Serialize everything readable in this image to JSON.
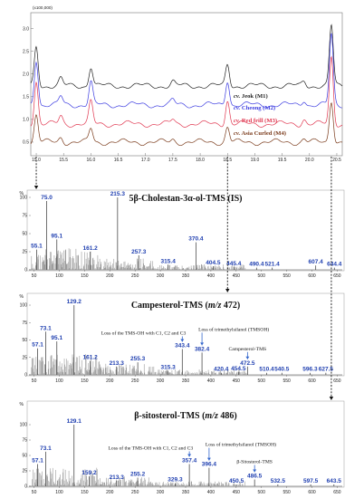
{
  "chart_data": [
    {
      "type": "line",
      "panel": "chromatogram",
      "y_scale_label": "(x100,000)",
      "y_ticks": [
        "3.0",
        "2.5",
        "2.0",
        "1.5",
        "1.0",
        "0.5"
      ],
      "xlim": [
        14.9,
        20.6
      ],
      "x_ticks": [
        "15.0",
        "15.5",
        "16.0",
        "16.5",
        "17.0",
        "17.5",
        "18.0",
        "18.5",
        "19.0",
        "19.5",
        "20.0",
        "20.5"
      ],
      "series": [
        {
          "name": "cv. Jeok (M1)",
          "color": "#222222",
          "baseline": 1.74,
          "peak_scale": 0.85
        },
        {
          "name": "cv. Cheong (M2)",
          "color": "#3b3be0",
          "baseline": 1.32,
          "peak_scale": 1.0
        },
        {
          "name": "cv. Red frill (M3)",
          "color": "#e0364f",
          "baseline": 0.9,
          "peak_scale": 0.95
        },
        {
          "name": "cv. Asia Curled (M4)",
          "color": "#7a3a1a",
          "baseline": 0.5,
          "peak_scale": 0.6
        }
      ],
      "peaks_rt": [
        {
          "rt": 15.0,
          "height": 1.0
        },
        {
          "rt": 15.45,
          "height": 0.18
        },
        {
          "rt": 16.0,
          "height": 0.5
        },
        {
          "rt": 17.5,
          "height": 0.1
        },
        {
          "rt": 18.5,
          "height": 0.55
        },
        {
          "rt": 19.9,
          "height": 0.12
        },
        {
          "rt": 20.4,
          "height": 1.55
        }
      ],
      "legend": {
        "prefix": "cv.",
        "items": [
          {
            "name": "Jeok (M1)",
            "color": "#222222"
          },
          {
            "name": "Cheong (M2)",
            "color": "#3b3be0"
          },
          {
            "name": "Red frill (M3)",
            "color": "#e0364f"
          },
          {
            "name": "Asia Curled (M4)",
            "color": "#7a3a1a"
          }
        ]
      }
    },
    {
      "type": "bar",
      "panel": "ms1",
      "title": "5β-Cholestan-3α-ol-TMS (IS)",
      "ylabel": "%",
      "ylim": [
        0,
        100
      ],
      "y_ticks": [
        "100",
        "75",
        "50",
        "25",
        "0"
      ],
      "xlim": [
        40,
        660
      ],
      "x_ticks": [
        "50",
        "100",
        "150",
        "200",
        "250",
        "300",
        "350",
        "400",
        "450",
        "500",
        "550",
        "600",
        "650"
      ],
      "labeled_peaks": [
        {
          "mz": 55.1,
          "label": "55.1",
          "value": 28
        },
        {
          "mz": 75.0,
          "label": "75.0",
          "value": 95
        },
        {
          "mz": 95.1,
          "label": "95.1",
          "value": 42
        },
        {
          "mz": 161.2,
          "label": "161.2",
          "value": 25
        },
        {
          "mz": 215.3,
          "label": "215.3",
          "value": 100
        },
        {
          "mz": 257.3,
          "label": "257.3",
          "value": 20
        },
        {
          "mz": 315.4,
          "label": "315.4",
          "value": 7
        },
        {
          "mz": 370.4,
          "label": "370.4",
          "value": 38
        },
        {
          "mz": 404.5,
          "label": "404.5",
          "value": 5
        },
        {
          "mz": 445.4,
          "label": "445.4",
          "value": 4
        },
        {
          "mz": 490.4,
          "label": "490.4",
          "value": 3
        },
        {
          "mz": 521.4,
          "label": "521.4",
          "value": 3
        },
        {
          "mz": 607.4,
          "label": "607.4",
          "value": 6
        },
        {
          "mz": 644.4,
          "label": "644.4",
          "value": 3
        }
      ],
      "annotations": []
    },
    {
      "type": "bar",
      "panel": "ms2",
      "title": "Campesterol-TMS (",
      "title_ital": "m/z",
      "title_end": " 472)",
      "ylabel": "%",
      "ylim": [
        0,
        100
      ],
      "y_ticks": [
        "100",
        "75",
        "50",
        "25",
        "0"
      ],
      "xlim": [
        40,
        660
      ],
      "x_ticks": [
        "50",
        "100",
        "150",
        "200",
        "250",
        "300",
        "350",
        "400",
        "450",
        "500",
        "550",
        "600",
        "650"
      ],
      "labeled_peaks": [
        {
          "mz": 57.1,
          "label": "57.1",
          "value": 38
        },
        {
          "mz": 73.1,
          "label": "73.1",
          "value": 62
        },
        {
          "mz": 95.1,
          "label": "95.1",
          "value": 48
        },
        {
          "mz": 129.2,
          "label": "129.2",
          "value": 100
        },
        {
          "mz": 161.2,
          "label": "161.2",
          "value": 20
        },
        {
          "mz": 213.3,
          "label": "213.3",
          "value": 12
        },
        {
          "mz": 255.3,
          "label": "255.3",
          "value": 18
        },
        {
          "mz": 315.3,
          "label": "315.3",
          "value": 6
        },
        {
          "mz": 343.4,
          "label": "343.4",
          "value": 37
        },
        {
          "mz": 382.4,
          "label": "382.4",
          "value": 32
        },
        {
          "mz": 420.4,
          "label": "420.4",
          "value": 3
        },
        {
          "mz": 454.5,
          "label": "454.5",
          "value": 4
        },
        {
          "mz": 472.5,
          "label": "472.5",
          "value": 12
        },
        {
          "mz": 510.4,
          "label": "510.4",
          "value": 3
        },
        {
          "mz": 540.5,
          "label": "540.5",
          "value": 3
        },
        {
          "mz": 596.3,
          "label": "596.3",
          "value": 3
        },
        {
          "mz": 627.5,
          "label": "627.5",
          "value": 3
        }
      ],
      "annotations": [
        {
          "text": "Loss of the TMS-OH with C1, C2 and C3",
          "mz": 343.4
        },
        {
          "text": "Loss of trimethylsilanol (TMSOH)",
          "mz": 382.4
        },
        {
          "text": "Campesterol-TMS",
          "mz": 472.5
        }
      ]
    },
    {
      "type": "bar",
      "panel": "ms3",
      "title": "β-sitosterol-TMS (",
      "title_ital": "m/z",
      "title_end": " 486)",
      "ylabel": "%",
      "ylim": [
        0,
        100
      ],
      "y_ticks": [
        "100",
        "75",
        "50",
        "25",
        "0"
      ],
      "xlim": [
        40,
        660
      ],
      "x_ticks": [
        "50",
        "100",
        "150",
        "200",
        "250",
        "300",
        "350",
        "400",
        "450",
        "500",
        "550",
        "600",
        "650"
      ],
      "labeled_peaks": [
        {
          "mz": 57.1,
          "label": "57.1",
          "value": 36
        },
        {
          "mz": 73.1,
          "label": "73.1",
          "value": 56
        },
        {
          "mz": 129.1,
          "label": "129.1",
          "value": 100
        },
        {
          "mz": 159.2,
          "label": "159.2",
          "value": 16
        },
        {
          "mz": 213.3,
          "label": "213.3",
          "value": 9
        },
        {
          "mz": 255.2,
          "label": "255.2",
          "value": 14
        },
        {
          "mz": 329.3,
          "label": "329.3",
          "value": 5
        },
        {
          "mz": 357.4,
          "label": "357.4",
          "value": 36
        },
        {
          "mz": 396.4,
          "label": "396.4",
          "value": 30
        },
        {
          "mz": 450.5,
          "label": "450.5",
          "value": 3
        },
        {
          "mz": 486.5,
          "label": "486.5",
          "value": 11
        },
        {
          "mz": 532.5,
          "label": "532.5",
          "value": 3
        },
        {
          "mz": 597.5,
          "label": "597.5",
          "value": 3
        },
        {
          "mz": 643.5,
          "label": "643.5",
          "value": 3
        }
      ],
      "annotations": [
        {
          "text": "Loss of the TMS-OH with C1, C2 and C3",
          "mz": 357.4
        },
        {
          "text": "Loss of trimethylsilanol (TMSOH)",
          "mz": 396.4
        },
        {
          "text": "β-Sitosterol-TMS",
          "mz": 486.5
        }
      ]
    }
  ]
}
